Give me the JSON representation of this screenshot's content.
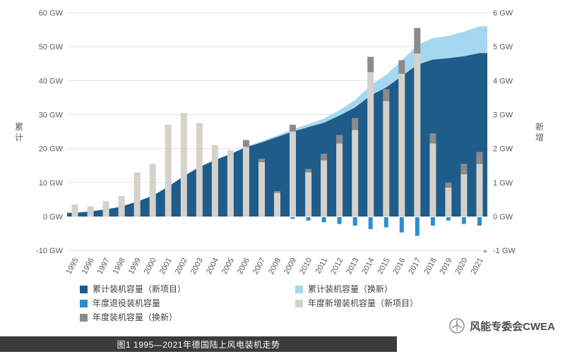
{
  "caption": "图1 1995—2021年德国陆上风电装机走势",
  "branding": {
    "name": "风能专委会CWEA",
    "logo_icon": "wind-turbine-icon"
  },
  "legend": [
    {
      "label": "累计装机容量（新项目）",
      "color": "#1e5c8a"
    },
    {
      "label": "累计装机容量（换新）",
      "color": "#a5d8f0"
    },
    {
      "label": "年度退役装机容量",
      "color": "#2b8fce"
    },
    {
      "label": "年度新增装机容量（新项目）",
      "color": "#d5d2cb"
    },
    {
      "label": "年度装机容量（换新）",
      "color": "#8b8b8b"
    }
  ],
  "chart_data": {
    "type": "combo: stacked area (cumulative GW, left axis) + stacked bar (annual GW, right axis)",
    "x": [
      "1995",
      "1996",
      "1997",
      "1998",
      "1999",
      "2000",
      "2001",
      "2002",
      "2003",
      "2004",
      "2005",
      "2006",
      "2007",
      "2008",
      "2009",
      "2010",
      "2011",
      "2012",
      "2013",
      "2014",
      "2015",
      "2016",
      "2017",
      "2018",
      "2019",
      "2020",
      "2021"
    ],
    "left_axis": {
      "label": "累计",
      "ticks": [
        "60 GW",
        "50 GW",
        "40 GW",
        "30 GW",
        "20 GW",
        "10 GW",
        "0 GW",
        "-10 GW"
      ],
      "tick_values": [
        60,
        50,
        40,
        30,
        20,
        10,
        0,
        -10
      ],
      "range": [
        -10,
        60
      ]
    },
    "right_axis": {
      "label": "新增",
      "ticks": [
        "6 GW",
        "5 GW",
        "4 GW",
        "3 GW",
        "2 GW",
        "1 GW",
        "0 GW",
        "-1 GW"
      ],
      "tick_values": [
        6,
        5,
        4,
        3,
        2,
        1,
        0,
        -1
      ],
      "range": [
        -1,
        6
      ]
    },
    "grid": true,
    "series": [
      {
        "name": "累计装机容量（新项目）",
        "type": "area",
        "axis": "left",
        "color": "#1e5c8a",
        "values": [
          1.1,
          1.5,
          2.1,
          2.9,
          4.4,
          6.1,
          8.8,
          11.9,
          14.6,
          16.6,
          18.4,
          20.4,
          21.8,
          23.4,
          25.0,
          26.3,
          27.6,
          29.7,
          32.1,
          35.6,
          38.0,
          41.3,
          44.7,
          46.2,
          46.6,
          47.2,
          48.1
        ]
      },
      {
        "name": "累计装机容量（换新）",
        "type": "area-stacked",
        "axis": "left",
        "color": "#a5d8f0",
        "values": [
          0,
          0,
          0,
          0,
          0,
          0,
          0,
          0,
          0,
          0,
          0,
          0.2,
          0.4,
          0.5,
          0.7,
          0.9,
          1.2,
          1.6,
          2.2,
          3.0,
          3.7,
          4.6,
          5.8,
          6.3,
          6.6,
          7.2,
          7.9
        ]
      },
      {
        "name": "年度新增装机容量（新项目）",
        "type": "bar",
        "axis": "right",
        "color": "#d5d2cb",
        "values": [
          0.35,
          0.3,
          0.45,
          0.6,
          1.3,
          1.55,
          2.7,
          3.05,
          2.75,
          2.1,
          1.95,
          2.05,
          1.6,
          0.7,
          2.5,
          1.3,
          1.65,
          2.15,
          2.55,
          4.25,
          3.4,
          4.2,
          4.8,
          2.15,
          0.85,
          1.25,
          1.55
        ]
      },
      {
        "name": "年度装机容量（换新）",
        "type": "bar-stacked",
        "axis": "right",
        "color": "#8b8b8b",
        "values": [
          0,
          0,
          0,
          0,
          0,
          0,
          0,
          0,
          0,
          0,
          0,
          0.2,
          0.1,
          0.05,
          0.2,
          0.1,
          0.2,
          0.25,
          0.35,
          0.45,
          0.35,
          0.4,
          0.75,
          0.3,
          0.15,
          0.3,
          0.35
        ]
      },
      {
        "name": "年度退役装机容量",
        "type": "bar",
        "axis": "right",
        "color": "#2b8fce",
        "values": [
          0,
          0,
          0,
          0,
          0,
          0,
          0,
          0,
          0,
          0,
          0,
          0,
          0,
          0,
          -0.05,
          -0.1,
          -0.15,
          -0.2,
          -0.25,
          -0.35,
          -0.3,
          -0.45,
          -0.55,
          -0.25,
          -0.1,
          -0.2,
          -0.25
        ]
      }
    ]
  }
}
